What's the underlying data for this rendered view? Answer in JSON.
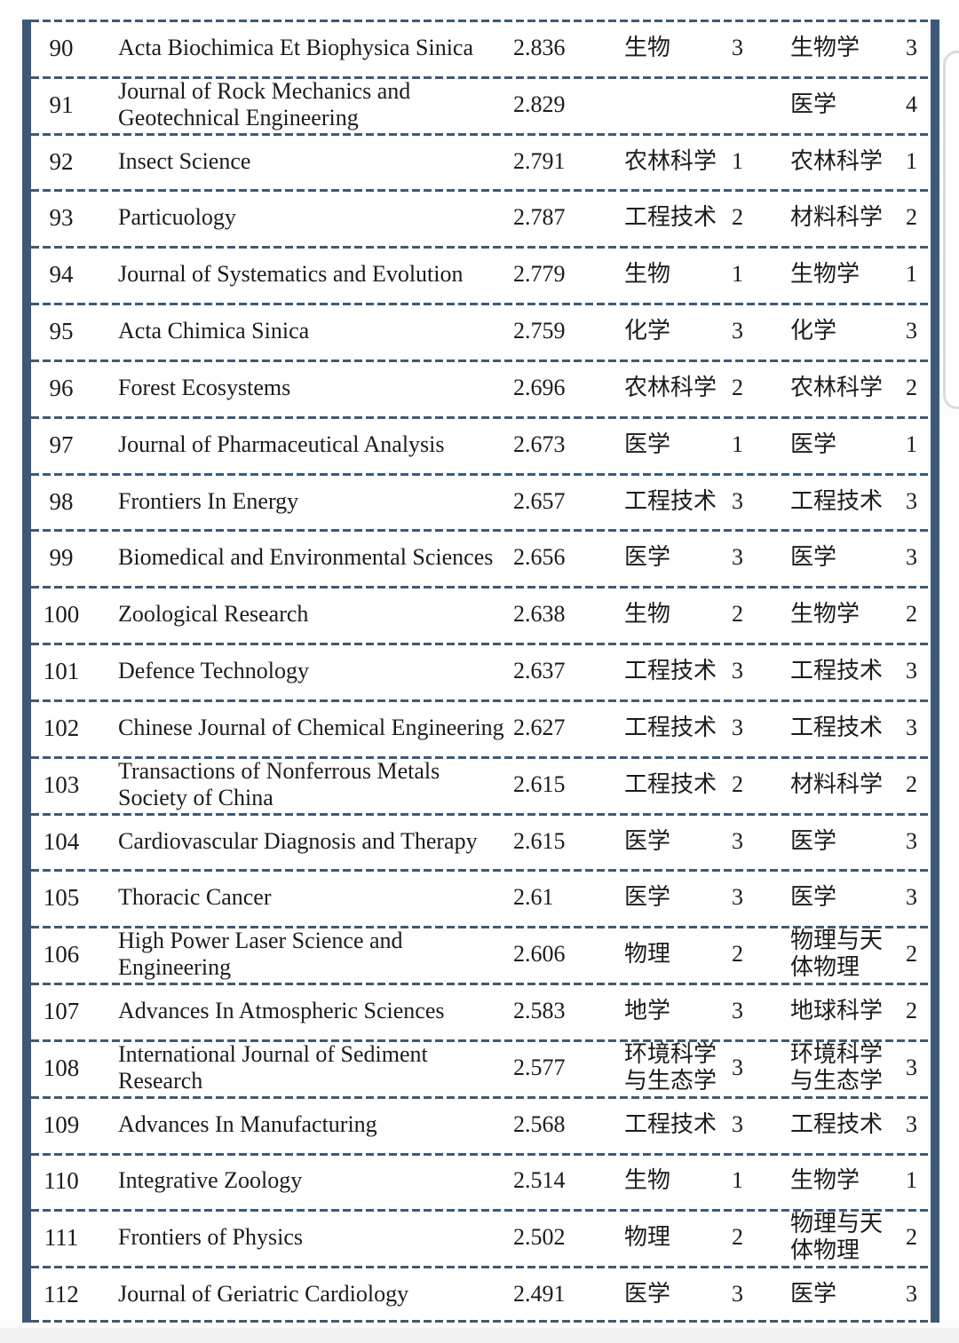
{
  "colors": {
    "table_border": "#3d5977",
    "separator_dash": "#3e5a76",
    "text": "#1b1b1b",
    "side_card_outline": "#dcdcdc"
  },
  "table": {
    "columns": [
      "rank",
      "journal_name",
      "impact_factor",
      "category_1",
      "tier_1",
      "category_2",
      "tier_2"
    ],
    "rows": [
      {
        "rank": "90",
        "name": "Acta Biochimica Et Biophysica Sinica",
        "impact_factor": "2.836",
        "cat1": "生物",
        "num1": "3",
        "cat2": "生物学",
        "num2": "3"
      },
      {
        "rank": "91",
        "name": "Journal of Rock Mechanics and Geotechnical Engineering",
        "impact_factor": "2.829",
        "cat1": "",
        "num1": "",
        "cat2": "医学",
        "num2": "4"
      },
      {
        "rank": "92",
        "name": "Insect Science",
        "impact_factor": "2.791",
        "cat1": "农林科学",
        "num1": "1",
        "cat2": "农林科学",
        "num2": "1"
      },
      {
        "rank": "93",
        "name": "Particuology",
        "impact_factor": "2.787",
        "cat1": "工程技术",
        "num1": "2",
        "cat2": "材料科学",
        "num2": "2"
      },
      {
        "rank": "94",
        "name": "Journal of Systematics and Evolution",
        "impact_factor": "2.779",
        "cat1": "生物",
        "num1": "1",
        "cat2": "生物学",
        "num2": "1"
      },
      {
        "rank": "95",
        "name": "Acta Chimica Sinica",
        "impact_factor": "2.759",
        "cat1": "化学",
        "num1": "3",
        "cat2": "化学",
        "num2": "3"
      },
      {
        "rank": "96",
        "name": "Forest Ecosystems",
        "impact_factor": "2.696",
        "cat1": "农林科学",
        "num1": "2",
        "cat2": "农林科学",
        "num2": "2"
      },
      {
        "rank": "97",
        "name": "Journal of Pharmaceutical Analysis",
        "impact_factor": "2.673",
        "cat1": "医学",
        "num1": "1",
        "cat2": "医学",
        "num2": "1"
      },
      {
        "rank": "98",
        "name": "Frontiers In Energy",
        "impact_factor": "2.657",
        "cat1": "工程技术",
        "num1": "3",
        "cat2": "工程技术",
        "num2": "3"
      },
      {
        "rank": "99",
        "name": "Biomedical and Environmental Sciences",
        "impact_factor": "2.656",
        "cat1": "医学",
        "num1": "3",
        "cat2": "医学",
        "num2": "3"
      },
      {
        "rank": "100",
        "name": "Zoological Research",
        "impact_factor": "2.638",
        "cat1": "生物",
        "num1": "2",
        "cat2": "生物学",
        "num2": "2"
      },
      {
        "rank": "101",
        "name": "Defence Technology",
        "impact_factor": "2.637",
        "cat1": "工程技术",
        "num1": "3",
        "cat2": "工程技术",
        "num2": "3"
      },
      {
        "rank": "102",
        "name": "Chinese Journal of Chemical Engineering",
        "impact_factor": "2.627",
        "cat1": "工程技术",
        "num1": "3",
        "cat2": "工程技术",
        "num2": "3"
      },
      {
        "rank": "103",
        "name": "Transactions of Nonferrous Metals Society of China",
        "impact_factor": "2.615",
        "cat1": "工程技术",
        "num1": "2",
        "cat2": "材料科学",
        "num2": "2"
      },
      {
        "rank": "104",
        "name": "Cardiovascular Diagnosis and Therapy",
        "impact_factor": "2.615",
        "cat1": "医学",
        "num1": "3",
        "cat2": "医学",
        "num2": "3"
      },
      {
        "rank": "105",
        "name": "Thoracic Cancer",
        "impact_factor": "2.61",
        "cat1": "医学",
        "num1": "3",
        "cat2": "医学",
        "num2": "3"
      },
      {
        "rank": "106",
        "name": "High Power Laser Science and Engineering",
        "impact_factor": "2.606",
        "cat1": "物理",
        "num1": "2",
        "cat2": "物理与天体物理",
        "num2": "2"
      },
      {
        "rank": "107",
        "name": "Advances In Atmospheric Sciences",
        "impact_factor": "2.583",
        "cat1": "地学",
        "num1": "3",
        "cat2": "地球科学",
        "num2": "2"
      },
      {
        "rank": "108",
        "name": "International Journal of Sediment Research",
        "impact_factor": "2.577",
        "cat1": "环境科学与生态学",
        "num1": "3",
        "cat2": "环境科学与生态学",
        "num2": "3"
      },
      {
        "rank": "109",
        "name": "Advances In Manufacturing",
        "impact_factor": "2.568",
        "cat1": "工程技术",
        "num1": "3",
        "cat2": "工程技术",
        "num2": "3"
      },
      {
        "rank": "110",
        "name": "Integrative Zoology",
        "impact_factor": "2.514",
        "cat1": "生物",
        "num1": "1",
        "cat2": "生物学",
        "num2": "1"
      },
      {
        "rank": "111",
        "name": "Frontiers of Physics",
        "impact_factor": "2.502",
        "cat1": "物理",
        "num1": "2",
        "cat2": "物理与天体物理",
        "num2": "2"
      },
      {
        "rank": "112",
        "name": "Journal of Geriatric Cardiology",
        "impact_factor": "2.491",
        "cat1": "医学",
        "num1": "3",
        "cat2": "医学",
        "num2": "3"
      }
    ]
  }
}
